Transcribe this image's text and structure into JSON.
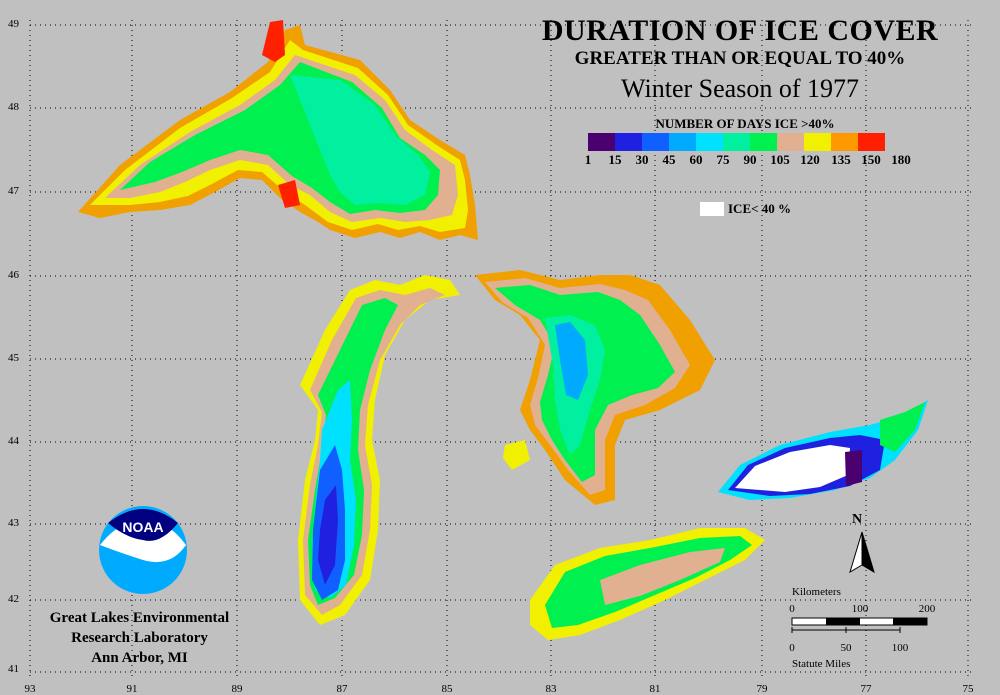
{
  "title": {
    "main": "DURATION OF ICE COVER",
    "sub": "GREATER THAN OR EQUAL TO 40%",
    "season": "Winter Season of 1977"
  },
  "legend": {
    "heading": "NUMBER OF DAYS ICE >40%",
    "ticks": [
      "1",
      "15",
      "30",
      "45",
      "60",
      "75",
      "90",
      "105",
      "120",
      "135",
      "150",
      "180"
    ],
    "colors": [
      "#4b0070",
      "#2020e0",
      "#1060ff",
      "#00aaff",
      "#00e0ff",
      "#00f0a0",
      "#00f050",
      "#e0b090",
      "#f0f000",
      "#ff9900",
      "#ff2000",
      "#ff10a0"
    ],
    "ice_label": "ICE< 40 %"
  },
  "lab": {
    "line1": "Great Lakes Environmental",
    "line2": "Research Laboratory",
    "line3": "Ann Arbor, MI",
    "logo_text": "NOAA"
  },
  "scale": {
    "km_label": "Kilometers",
    "km_ticks": [
      "0",
      "100",
      "200"
    ],
    "mi_ticks": [
      "0",
      "50",
      "100"
    ],
    "mi_label": "Statute Miles"
  },
  "north_label": "N",
  "axes": {
    "latitudes": [
      "49",
      "48",
      "47",
      "46",
      "45",
      "44",
      "43",
      "42",
      "41"
    ],
    "longitudes": [
      "93",
      "91",
      "89",
      "87",
      "85",
      "83",
      "81",
      "79",
      "77",
      "75"
    ]
  }
}
